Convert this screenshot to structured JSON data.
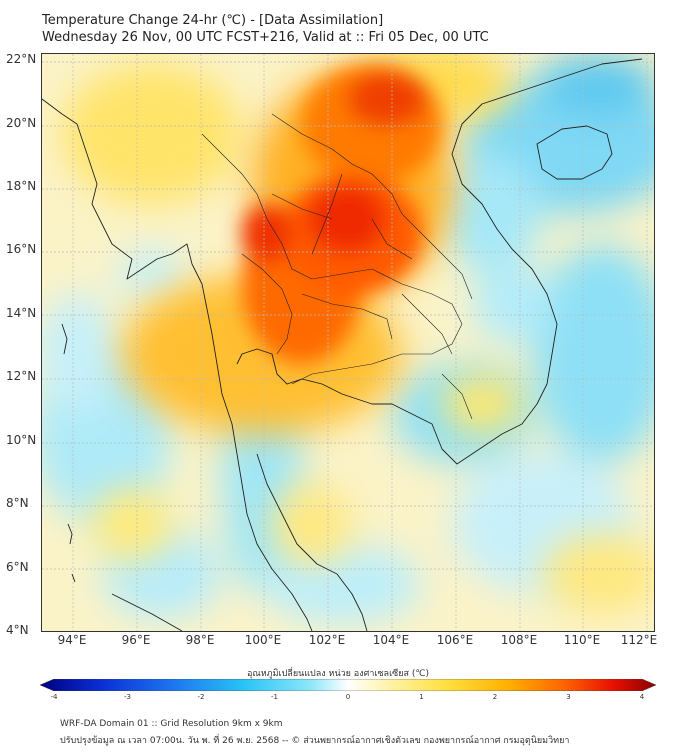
{
  "title": {
    "line1": "Temperature Change 24-hr (℃) - [Data Assimilation]",
    "line2": "Wednesday 26 Nov, 00 UTC FCST+216, Valid at :: Fri 05 Dec, 00 UTC"
  },
  "map": {
    "lat_labels": [
      "22°N",
      "20°N",
      "18°N",
      "16°N",
      "14°N",
      "12°N",
      "10°N",
      "8°N",
      "6°N",
      "4°N"
    ],
    "lon_labels": [
      "94°E",
      "96°E",
      "98°E",
      "100°E",
      "102°E",
      "104°E",
      "106°E",
      "108°E",
      "110°E",
      "112°E"
    ],
    "lat_range": [
      4,
      22
    ],
    "lon_range": [
      93,
      112.2
    ],
    "field": {
      "units": "°C",
      "hot_core_center": [
        102.5,
        17.0
      ],
      "max_value": 3.5
    }
  },
  "colorbar": {
    "title": "อุณหภูมิเปลี่ยนแปลง หน่วย องศาเซลเซียส (℃)",
    "tick_labels": [
      "-4",
      "-3",
      "-2",
      "-1",
      "0",
      "1",
      "2",
      "3",
      "4"
    ],
    "range": [
      -4,
      4
    ],
    "colors": [
      "#000080",
      "#0a2fd6",
      "#1e78f0",
      "#28c3f5",
      "#8ee6fa",
      "#ffffff",
      "#fff4b0",
      "#ffe040",
      "#ffb000",
      "#ff6400",
      "#e81000",
      "#8b0000"
    ]
  },
  "footer": {
    "line1": "WRF-DA Domain 01 :: Grid Resolution 9km x 9km",
    "line2": "ปรับปรุงข้อมูล ณ เวลา 07:00น. วัน พ. ที่ 26 พ.ย. 2568 -- © ส่วนพยากรณ์อากาศเชิงตัวเลข กองพยากรณ์อากาศ กรมอุตุนิยมวิทยา"
  }
}
